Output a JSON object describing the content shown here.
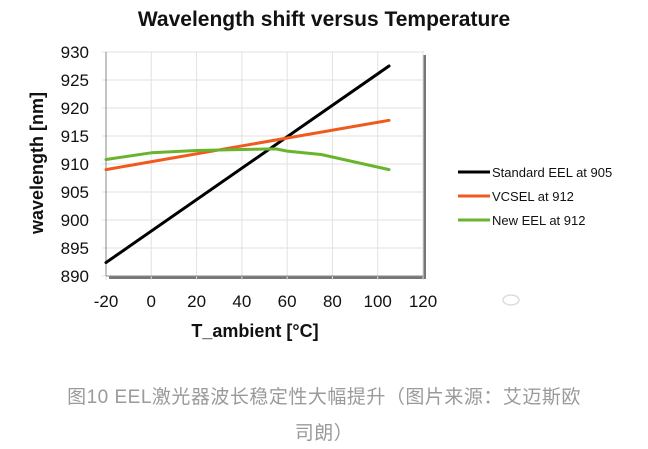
{
  "chart_data": {
    "type": "line",
    "title": "Wavelength shift versus Temperature",
    "xlabel": "T_ambient [°C]",
    "ylabel": "wavelength [nm]",
    "xlim": [
      -20,
      120
    ],
    "ylim": [
      890,
      930
    ],
    "xticks": [
      -20,
      0,
      20,
      40,
      60,
      80,
      100,
      120
    ],
    "yticks": [
      890,
      895,
      900,
      905,
      910,
      915,
      920,
      925,
      930
    ],
    "grid": true,
    "legend_position": "right",
    "series": [
      {
        "name": "Standard EEL at 905",
        "color": "#000000",
        "x": [
          -20,
          105
        ],
        "y": [
          892.4,
          927.5
        ]
      },
      {
        "name": "VCSEL at 912",
        "color": "#f05a1e",
        "x": [
          -20,
          105
        ],
        "y": [
          909.0,
          917.8
        ]
      },
      {
        "name": "New EEL at 912",
        "color": "#6ab42d",
        "x": [
          -20,
          0,
          20,
          40,
          55,
          60,
          75,
          105
        ],
        "y": [
          910.8,
          912.0,
          912.4,
          912.6,
          912.7,
          912.3,
          911.7,
          909.0
        ]
      }
    ]
  },
  "caption": {
    "line1": "图10 EEL激光器波长稳定性大幅提升（图片来源：艾迈斯欧",
    "line2": "司朗）"
  }
}
